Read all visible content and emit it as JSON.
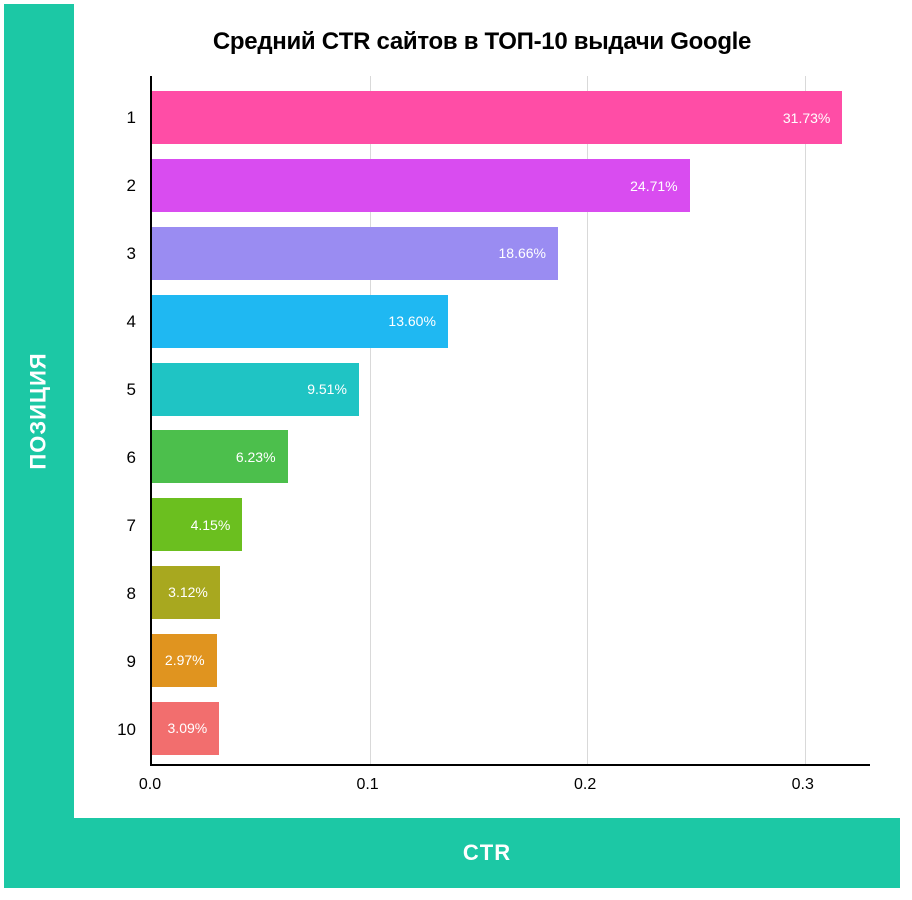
{
  "chart": {
    "type": "bar-horizontal",
    "title": "Средний CTR сайтов в ТОП-10 выдачи Google",
    "y_axis_label": "ПОЗИЦИЯ",
    "x_axis_label": "CTR",
    "frame_color": "#1cc8a5",
    "background_color": "#ffffff",
    "grid_color": "#d9d9d9",
    "axis_color": "#000000",
    "title_fontsize": 24,
    "axis_title_fontsize": 22,
    "tick_fontsize": 16,
    "bar_label_fontsize": 14,
    "bar_height_pct": 78,
    "xlim": [
      0.0,
      0.33
    ],
    "xticks": [
      0.0,
      0.1,
      0.2,
      0.3
    ],
    "xtick_labels": [
      "0.0",
      "0.1",
      "0.2",
      "0.3"
    ],
    "categories": [
      "1",
      "2",
      "3",
      "4",
      "5",
      "6",
      "7",
      "8",
      "9",
      "10"
    ],
    "values": [
      0.3173,
      0.2471,
      0.1866,
      0.136,
      0.0951,
      0.0623,
      0.0415,
      0.0312,
      0.0297,
      0.0309
    ],
    "value_labels": [
      "31.73%",
      "24.71%",
      "18.66%",
      "13.60%",
      "9.51%",
      "6.23%",
      "4.15%",
      "3.12%",
      "2.97%",
      "3.09%"
    ],
    "bar_colors": [
      "#ff4da6",
      "#d94cf0",
      "#9a8cf2",
      "#1fb8f2",
      "#1fc4c4",
      "#4cbf4c",
      "#6bbf1f",
      "#a8a81f",
      "#e0941f",
      "#f26e6e"
    ],
    "bar_label_color": "#ffffff"
  }
}
